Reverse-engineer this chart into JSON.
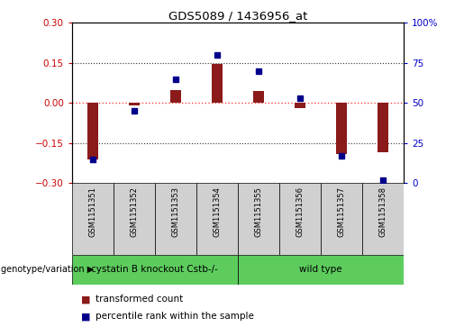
{
  "title": "GDS5089 / 1436956_at",
  "samples": [
    "GSM1151351",
    "GSM1151352",
    "GSM1151353",
    "GSM1151354",
    "GSM1151355",
    "GSM1151356",
    "GSM1151357",
    "GSM1151358"
  ],
  "transformed_count": [
    -0.21,
    -0.01,
    0.05,
    0.145,
    0.045,
    -0.02,
    -0.19,
    -0.185
  ],
  "percentile_rank": [
    15,
    45,
    65,
    80,
    70,
    53,
    17,
    2
  ],
  "ylim_left": [
    -0.3,
    0.3
  ],
  "ylim_right": [
    0,
    100
  ],
  "yticks_left": [
    -0.3,
    -0.15,
    0,
    0.15,
    0.3
  ],
  "yticks_right": [
    0,
    25,
    50,
    75,
    100
  ],
  "group1_label": "cystatin B knockout Cstb-/-",
  "group1_count": 4,
  "group2_label": "wild type",
  "group2_count": 4,
  "group_row_label": "genotype/variation",
  "legend1_label": "transformed count",
  "legend2_label": "percentile rank within the sample",
  "bar_color": "#8B1A1A",
  "dot_color": "#00008B",
  "group_color": "#5DCC5D",
  "sample_box_color": "#D0D0D0",
  "zero_line_color": "#FF4444",
  "hline_color": "#333333",
  "tick_color_left": "#CC0000",
  "tick_color_right": "#0000CC",
  "bar_width": 0.25
}
